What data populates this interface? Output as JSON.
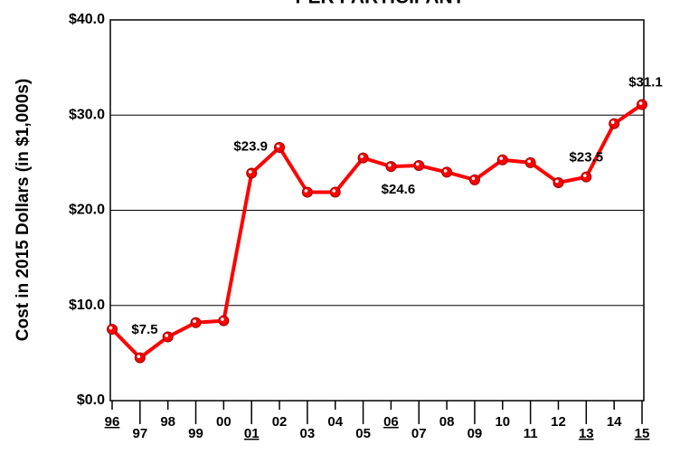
{
  "chart_data": {
    "type": "line",
    "title": "PER PARTICIPANT",
    "y_label": "Cost in 2015 Dollars (in $1,000s)",
    "categories": [
      "96",
      "97",
      "98",
      "99",
      "00",
      "01",
      "02",
      "03",
      "04",
      "05",
      "06",
      "07",
      "08",
      "09",
      "10",
      "11",
      "12",
      "13",
      "14",
      "15"
    ],
    "underlined": [
      true,
      false,
      false,
      false,
      false,
      true,
      false,
      false,
      false,
      false,
      true,
      false,
      false,
      false,
      false,
      false,
      false,
      true,
      false,
      true
    ],
    "series": [
      {
        "name": "Cost",
        "color": "#ff0000",
        "values": [
          7.5,
          4.5,
          6.7,
          8.2,
          8.4,
          23.9,
          26.6,
          21.9,
          21.9,
          25.5,
          24.6,
          24.7,
          24.0,
          23.2,
          25.3,
          25.0,
          22.9,
          23.5,
          29.1,
          31.1
        ],
        "value_labels": [
          "$7.5",
          null,
          null,
          null,
          null,
          "$23.9",
          null,
          null,
          null,
          null,
          "$24.6",
          null,
          null,
          null,
          null,
          null,
          null,
          "$23.5",
          null,
          "$31.1"
        ]
      }
    ],
    "ylim": [
      0,
      40
    ],
    "yticks": [
      {
        "value": 0,
        "label": "$0.0"
      },
      {
        "value": 10,
        "label": "$10.0"
      },
      {
        "value": 20,
        "label": "$20.0"
      },
      {
        "value": 30,
        "label": "$30.0"
      },
      {
        "value": 40,
        "label": "$40.0"
      }
    ],
    "grid": true
  }
}
